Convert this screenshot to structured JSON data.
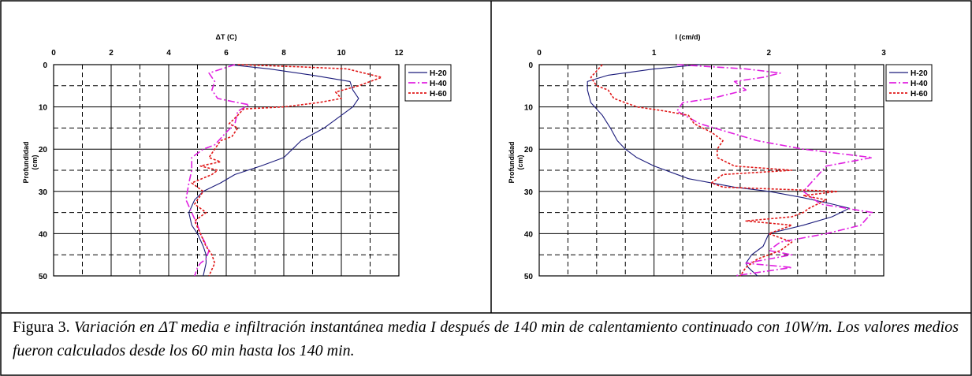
{
  "caption": {
    "prefix": "Figura 3. ",
    "text": "Variación en ΔT media  e infiltración instantánea media  I después de 140 min de calentamiento continuado con 10W/m. Los valores medios fueron calculados desde los 60 min hasta los 140 min."
  },
  "colors": {
    "h20": "#1a1a7a",
    "h40": "#e020e0",
    "h60": "#e01818",
    "axis": "#000000",
    "grid": "#000000"
  },
  "chart_data": [
    {
      "type": "line",
      "title": "",
      "xlabel": "ΔT (C)",
      "ylabel": "Profundidad (cm)",
      "xlim": [
        0,
        12
      ],
      "ylim": [
        0,
        50
      ],
      "y_inverted": true,
      "x_axis_position": "top",
      "xticks": [
        0,
        2,
        4,
        6,
        8,
        10,
        12
      ],
      "yticks": [
        0,
        10,
        20,
        30,
        40,
        50
      ],
      "grid": true,
      "legend_position": "top-right",
      "series": [
        {
          "name": "H-20",
          "style": "solid",
          "x": [
            6.1,
            7.5,
            9.0,
            10.3,
            10.4,
            10.6,
            10.4,
            10.0,
            9.4,
            8.6,
            8.3,
            8.0,
            7.2,
            6.3,
            5.8,
            5.2,
            4.9,
            4.7,
            4.8,
            5.0,
            5.2,
            5.3,
            5.3,
            5.2
          ],
          "y": [
            0,
            1,
            2.5,
            4,
            6,
            8,
            10,
            12,
            15,
            18,
            20,
            22,
            24,
            26,
            28,
            30,
            32,
            35,
            38,
            40,
            43,
            45,
            47,
            50
          ]
        },
        {
          "name": "H-40",
          "style": "dash-dot",
          "x": [
            6.3,
            5.4,
            5.6,
            5.5,
            5.7,
            6.4,
            6.8,
            6.4,
            6.3,
            6.0,
            5.6,
            5.2,
            4.8,
            4.8,
            4.7,
            4.6,
            4.8,
            5.0,
            5.1,
            5.4,
            5.3,
            5.1,
            5.0,
            4.9
          ],
          "y": [
            0,
            2,
            4,
            6,
            8,
            9,
            9.5,
            11,
            14,
            16,
            19,
            20,
            22,
            25,
            28,
            32,
            35,
            38,
            40,
            44,
            46,
            47,
            48,
            50
          ]
        },
        {
          "name": "H-60",
          "style": "dotted",
          "x": [
            6.4,
            8.5,
            10.2,
            11.4,
            10.6,
            9.8,
            10.0,
            9.2,
            8.0,
            6.6,
            6.4,
            6.1,
            6.4,
            6.2,
            5.8,
            5.6,
            5.4,
            5.8,
            5.1,
            5.7,
            5.5,
            4.8,
            5.2,
            4.9,
            5.3,
            4.9,
            5.1,
            5.3,
            5.5,
            5.6,
            5.4
          ],
          "y": [
            0,
            0.5,
            1,
            3,
            5,
            6.5,
            8,
            9,
            10,
            10.5,
            12,
            14,
            15,
            17,
            18,
            20,
            22,
            23,
            24,
            25,
            26,
            28,
            30,
            33,
            35,
            37,
            40,
            43,
            45,
            47,
            50
          ]
        }
      ]
    },
    {
      "type": "line",
      "title": "",
      "xlabel": "I (cm/d)",
      "ylabel": "Profundidad (cm)",
      "xlim": [
        0,
        3
      ],
      "ylim": [
        0,
        50
      ],
      "y_inverted": true,
      "x_axis_position": "top",
      "xticks": [
        0,
        1,
        2,
        3
      ],
      "yticks": [
        0,
        10,
        20,
        30,
        40,
        50
      ],
      "grid": true,
      "legend_position": "top-right",
      "series": [
        {
          "name": "H-20",
          "style": "solid",
          "x": [
            1.4,
            1.0,
            0.6,
            0.42,
            0.42,
            0.45,
            0.55,
            0.62,
            0.68,
            0.75,
            0.85,
            1.0,
            1.3,
            1.7,
            2.0,
            2.3,
            2.55,
            2.7,
            2.55,
            2.3,
            2.0,
            1.95,
            1.85,
            1.8,
            1.82,
            1.9
          ],
          "y": [
            0,
            1,
            2.5,
            4,
            6,
            9,
            12,
            15,
            18,
            20,
            22,
            24,
            27,
            29,
            30,
            31.5,
            33,
            34,
            36,
            38,
            40,
            43,
            45,
            47,
            48,
            50
          ]
        },
        {
          "name": "H-40",
          "style": "dash-dot",
          "x": [
            1.2,
            1.8,
            2.1,
            1.95,
            1.7,
            1.8,
            1.5,
            1.25,
            1.2,
            1.4,
            1.9,
            2.3,
            2.9,
            2.5,
            2.4,
            2.3,
            2.45,
            2.9,
            2.8,
            2.5,
            2.1,
            2.0,
            2.2,
            2.0,
            1.8,
            2.2,
            1.7
          ],
          "y": [
            0,
            1,
            2,
            3,
            4,
            6,
            8,
            9,
            11,
            14,
            18,
            20,
            22,
            24,
            27,
            30,
            33,
            35,
            38,
            40,
            42,
            44,
            45,
            46,
            47,
            48,
            50
          ]
        },
        {
          "name": "H-60",
          "style": "dotted",
          "x": [
            0.55,
            0.45,
            0.5,
            0.6,
            0.65,
            0.85,
            1.1,
            1.3,
            1.35,
            1.5,
            1.6,
            1.55,
            1.55,
            1.7,
            2.2,
            1.6,
            1.5,
            1.6,
            2.6,
            2.3,
            2.5,
            2.35,
            2.3,
            2.2,
            1.8,
            2.2,
            2.0,
            2.2,
            2.1,
            1.9,
            1.8,
            1.75
          ],
          "y": [
            0,
            3,
            5,
            6,
            8,
            10,
            11,
            12,
            14,
            16,
            18,
            20,
            22,
            24,
            25,
            26,
            28,
            29,
            30,
            31,
            32,
            34,
            35,
            36,
            37,
            38,
            40,
            42,
            44,
            46,
            48,
            50
          ]
        }
      ]
    }
  ]
}
